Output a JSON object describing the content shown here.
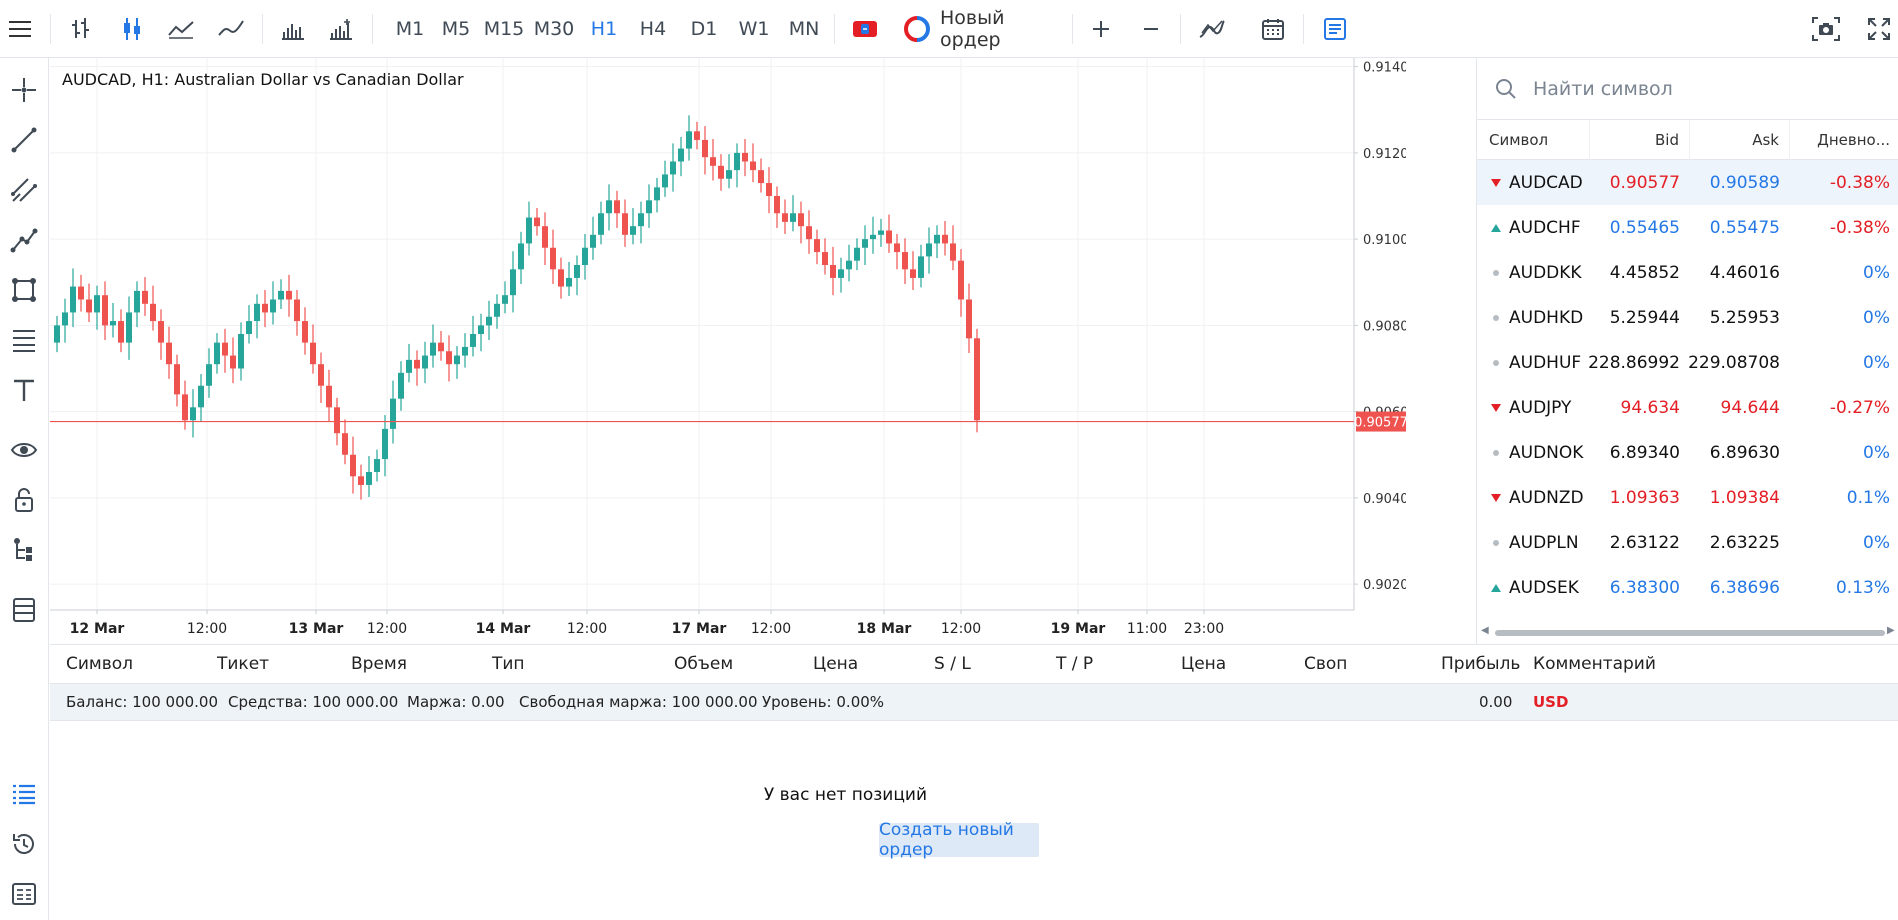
{
  "toolbar": {
    "timeframes": [
      "M1",
      "M5",
      "M15",
      "M30",
      "H1",
      "H4",
      "D1",
      "W1",
      "MN"
    ],
    "active_timeframe": "H1",
    "new_order_label": "Новый ордер",
    "icons": [
      "menu-icon",
      "bar-chart-icon",
      "candlestick-icon",
      "line-chart-icon",
      "spline-chart-icon",
      "volume-icon",
      "tick-volume-icon",
      "one-click-trading-icon",
      "zoom-in-icon",
      "zoom-out-icon",
      "indicators-icon",
      "calendar-icon",
      "order-book-icon",
      "screenshot-icon",
      "fullscreen-icon"
    ]
  },
  "left_rail": {
    "icons": [
      "crosshair-icon",
      "trendline-icon",
      "channel-icon",
      "polyline-icon",
      "shapes-icon",
      "fibonacci-icon",
      "text-icon",
      "visibility-icon",
      "lock-icon",
      "objects-tree-icon",
      "layers-icon",
      "trade-list-icon",
      "history-icon",
      "journal-icon"
    ]
  },
  "chart": {
    "title": "AUDCAD, H1: Australian Dollar vs Canadian Dollar",
    "current_price": "0.90577",
    "y_ticks": [
      "0.91400",
      "0.91200",
      "0.91000",
      "0.90800",
      "0.90600",
      "0.90400",
      "0.90200"
    ],
    "x_ticks": [
      "12 Mar",
      "12:00",
      "13 Mar",
      "12:00",
      "14 Mar",
      "12:00",
      "17 Mar",
      "12:00",
      "18 Mar",
      "12:00",
      "19 Mar",
      "11:00",
      "23:00"
    ]
  },
  "chart_data": {
    "type": "candlestick",
    "symbol": "AUDCAD",
    "timeframe": "H1",
    "title": "AUDCAD, H1: Australian Dollar vs Canadian Dollar",
    "ylim": [
      0.9014,
      0.9142
    ],
    "last_price": 0.90577,
    "colors": {
      "up": "#26a69a",
      "down": "#ef5350",
      "price_line": "#ef5350"
    },
    "close": [
      0.908,
      0.9083,
      0.9089,
      0.9086,
      0.9083,
      0.9087,
      0.908,
      0.9081,
      0.9076,
      0.9083,
      0.9088,
      0.9085,
      0.9081,
      0.9076,
      0.9071,
      0.9064,
      0.9058,
      0.9061,
      0.9066,
      0.9071,
      0.9076,
      0.9073,
      0.907,
      0.9078,
      0.9081,
      0.9085,
      0.9083,
      0.9086,
      0.9088,
      0.9086,
      0.9081,
      0.9076,
      0.9071,
      0.9066,
      0.9061,
      0.9055,
      0.905,
      0.9045,
      0.9043,
      0.9046,
      0.9049,
      0.9056,
      0.9063,
      0.9069,
      0.9072,
      0.907,
      0.9073,
      0.9076,
      0.9074,
      0.9071,
      0.9073,
      0.9075,
      0.9078,
      0.908,
      0.9082,
      0.9085,
      0.9087,
      0.9093,
      0.9099,
      0.9105,
      0.9103,
      0.9098,
      0.9093,
      0.9089,
      0.9091,
      0.9094,
      0.9098,
      0.9101,
      0.9106,
      0.9109,
      0.9106,
      0.9101,
      0.9103,
      0.9106,
      0.9109,
      0.9112,
      0.9115,
      0.9118,
      0.9121,
      0.9125,
      0.9123,
      0.9119,
      0.9117,
      0.9114,
      0.9116,
      0.912,
      0.9118,
      0.9116,
      0.9113,
      0.911,
      0.9106,
      0.9104,
      0.9106,
      0.9103,
      0.91,
      0.9097,
      0.9094,
      0.9091,
      0.9093,
      0.9095,
      0.9098,
      0.91,
      0.9101,
      0.9102,
      0.9099,
      0.9097,
      0.9093,
      0.9091,
      0.9096,
      0.9099,
      0.9101,
      0.9099,
      0.9095,
      0.9086,
      0.9077,
      0.9058
    ]
  },
  "watchlist": {
    "search_placeholder": "Найти символ",
    "columns": [
      "Символ",
      "Bid",
      "Ask",
      "Дневно..."
    ],
    "rows": [
      {
        "symbol": "AUDCAD",
        "bid": "0.90577",
        "ask": "0.90589",
        "day": "-0.38%",
        "dir": "down",
        "bid_color": "#e31e24",
        "ask_color": "#2478e6",
        "day_color": "#e31e24"
      },
      {
        "symbol": "AUDCHF",
        "bid": "0.55465",
        "ask": "0.55475",
        "day": "-0.38%",
        "dir": "up",
        "bid_color": "#2478e6",
        "ask_color": "#2478e6",
        "day_color": "#e31e24"
      },
      {
        "symbol": "AUDDKK",
        "bid": "4.45852",
        "ask": "4.46016",
        "day": "0%",
        "dir": "none",
        "bid_color": "#111111",
        "ask_color": "#111111",
        "day_color": "#2478e6"
      },
      {
        "symbol": "AUDHKD",
        "bid": "5.25944",
        "ask": "5.25953",
        "day": "0%",
        "dir": "none",
        "bid_color": "#111111",
        "ask_color": "#111111",
        "day_color": "#2478e6"
      },
      {
        "symbol": "AUDHUF",
        "bid": "228.86992",
        "ask": "229.08708",
        "day": "0%",
        "dir": "none",
        "bid_color": "#111111",
        "ask_color": "#111111",
        "day_color": "#2478e6"
      },
      {
        "symbol": "AUDJPY",
        "bid": "94.634",
        "ask": "94.644",
        "day": "-0.27%",
        "dir": "down",
        "bid_color": "#e31e24",
        "ask_color": "#e31e24",
        "day_color": "#e31e24"
      },
      {
        "symbol": "AUDNOK",
        "bid": "6.89340",
        "ask": "6.89630",
        "day": "0%",
        "dir": "none",
        "bid_color": "#111111",
        "ask_color": "#111111",
        "day_color": "#2478e6"
      },
      {
        "symbol": "AUDNZD",
        "bid": "1.09363",
        "ask": "1.09384",
        "day": "0.1%",
        "dir": "down",
        "bid_color": "#e31e24",
        "ask_color": "#e31e24",
        "day_color": "#2478e6"
      },
      {
        "symbol": "AUDPLN",
        "bid": "2.63122",
        "ask": "2.63225",
        "day": "0%",
        "dir": "none",
        "bid_color": "#111111",
        "ask_color": "#111111",
        "day_color": "#2478e6"
      },
      {
        "symbol": "AUDSEK",
        "bid": "6.38300",
        "ask": "6.38696",
        "day": "0.13%",
        "dir": "up",
        "bid_color": "#2478e6",
        "ask_color": "#2478e6",
        "day_color": "#2478e6"
      }
    ]
  },
  "trade": {
    "columns": [
      "Символ",
      "Тикет",
      "Время",
      "Тип",
      "Объем",
      "Цена",
      "S / L",
      "T / P",
      "Цена",
      "Своп",
      "Прибыль",
      "Комментарий"
    ],
    "balance": "Баланс: 100 000.00",
    "equity": "Средства: 100 000.00",
    "margin": "Маржа: 0.00",
    "free_margin": "Свободная маржа: 100 000.00",
    "level": "Уровень: 0.00%",
    "profit": "0.00",
    "currency": "USD",
    "empty_message": "У вас нет позиций",
    "create_order_label": "Создать новый ордер"
  },
  "colors": {
    "accent": "#2478e6",
    "down": "#ef5350",
    "up": "#26a69a",
    "price_red": "#e31e24"
  }
}
